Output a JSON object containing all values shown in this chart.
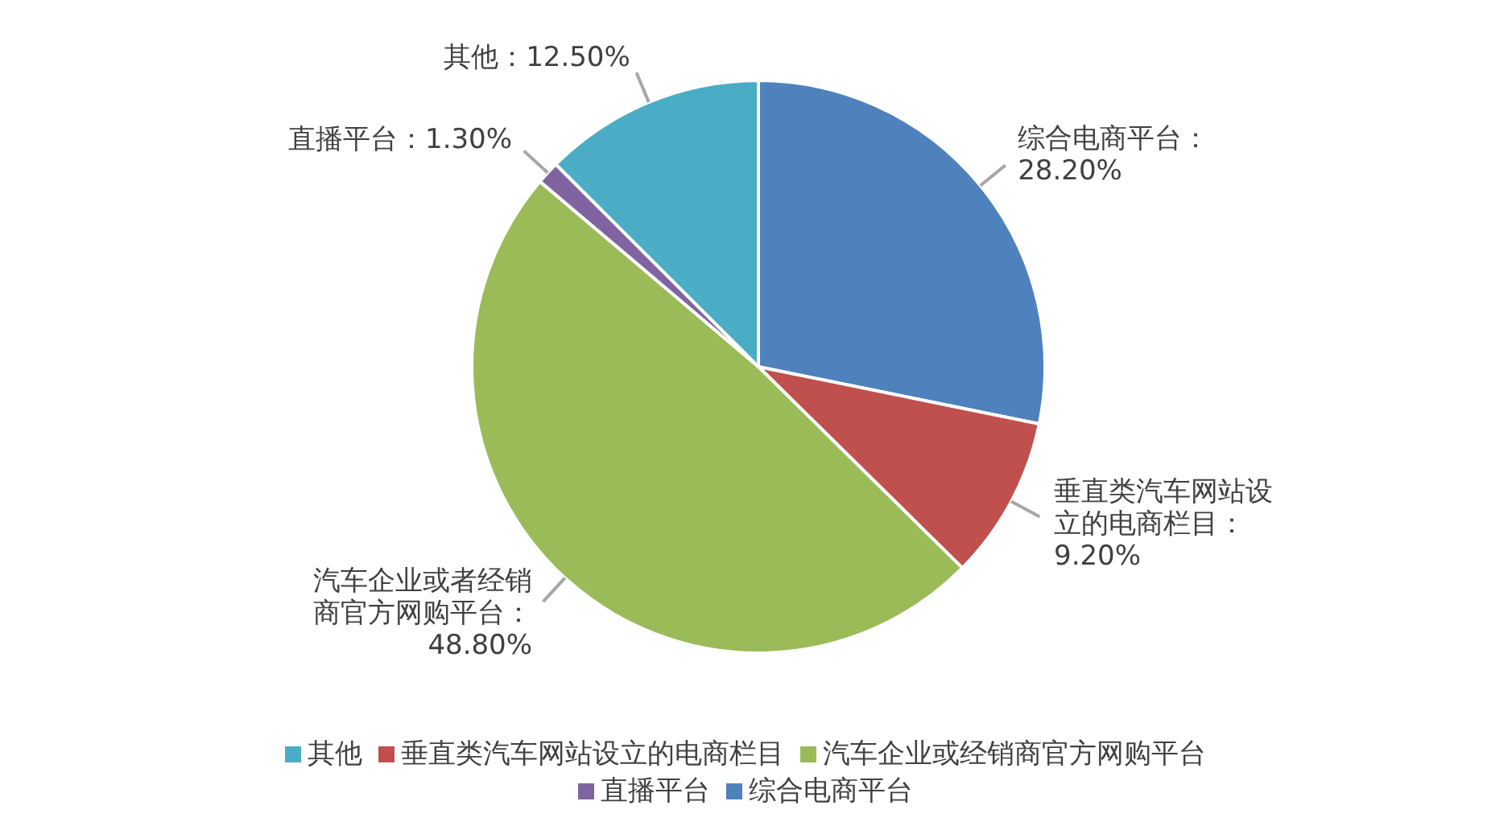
{
  "chart_data": {
    "type": "pie",
    "categories": [
      "综合电商平台",
      "垂直类汽车网站设立的电商栏目",
      "汽车企业或经销商官方网购平台",
      "直播平台",
      "其他"
    ],
    "values": [
      28.2,
      9.2,
      48.8,
      1.3,
      12.5
    ],
    "colors": [
      "#4f81bd",
      "#c0504d",
      "#9bbb59",
      "#8064a2",
      "#4bacc6"
    ],
    "value_labels": [
      "综合电商平台：28.20%",
      "垂直类汽车网站设立的电商栏目：9.20%",
      "汽车企业或者经销商官方网购平台：48.80%",
      "直播平台：1.30%",
      "其他：12.50%"
    ],
    "legend": "bottom"
  }
}
